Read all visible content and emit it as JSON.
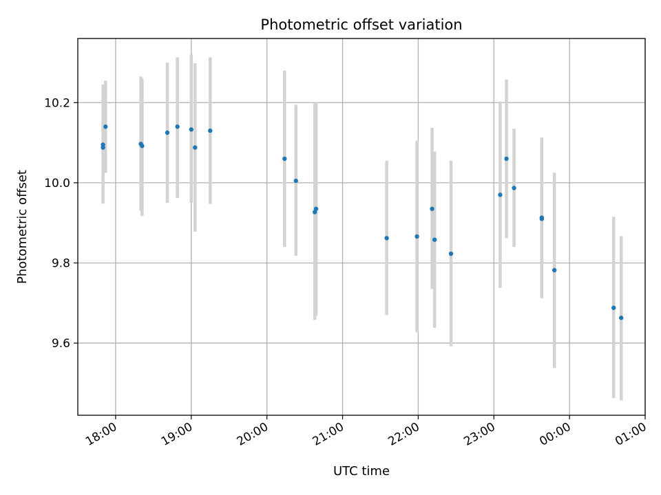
{
  "chart_data": {
    "type": "scatter",
    "title": "Photometric offset variation",
    "xlabel": "UTC time",
    "ylabel": "Photometric offset",
    "x_axis_type": "time",
    "xlim": [
      "17:30",
      "01:00"
    ],
    "ylim": [
      9.42,
      10.36
    ],
    "x_ticks": [
      "18:00",
      "19:00",
      "20:00",
      "21:00",
      "22:00",
      "23:00",
      "00:00",
      "01:00"
    ],
    "y_ticks": [
      9.6,
      9.8,
      10.0,
      10.2
    ],
    "grid": true,
    "legend": "none",
    "colors": {
      "points": "#1f77b4",
      "errorbars": "#d3d3d3",
      "grid": "#b0b0b0"
    },
    "series": [
      {
        "points": [
          {
            "x": "17:50",
            "y": 10.095,
            "ylow": 9.948,
            "yhigh": 10.245
          },
          {
            "x": "17:50",
            "y": 10.088,
            "ylow": 9.948,
            "yhigh": 10.23
          },
          {
            "x": "17:52",
            "y": 10.14,
            "ylow": 10.025,
            "yhigh": 10.255
          },
          {
            "x": "18:20",
            "y": 10.097,
            "ylow": 9.93,
            "yhigh": 10.265
          },
          {
            "x": "18:21",
            "y": 10.092,
            "ylow": 9.917,
            "yhigh": 10.26
          },
          {
            "x": "18:41",
            "y": 10.125,
            "ylow": 9.95,
            "yhigh": 10.3
          },
          {
            "x": "18:49",
            "y": 10.14,
            "ylow": 9.962,
            "yhigh": 10.313
          },
          {
            "x": "19:00",
            "y": 10.133,
            "ylow": 9.95,
            "yhigh": 10.32
          },
          {
            "x": "19:03",
            "y": 10.088,
            "ylow": 9.878,
            "yhigh": 10.298
          },
          {
            "x": "19:15",
            "y": 10.13,
            "ylow": 9.947,
            "yhigh": 10.313
          },
          {
            "x": "20:14",
            "y": 10.06,
            "ylow": 9.84,
            "yhigh": 10.28
          },
          {
            "x": "20:23",
            "y": 10.005,
            "ylow": 9.818,
            "yhigh": 10.195
          },
          {
            "x": "20:39",
            "y": 9.935,
            "ylow": 9.668,
            "yhigh": 10.2
          },
          {
            "x": "20:38",
            "y": 9.927,
            "ylow": 9.658,
            "yhigh": 10.198
          },
          {
            "x": "21:35",
            "y": 9.862,
            "ylow": 9.67,
            "yhigh": 10.055
          },
          {
            "x": "21:59",
            "y": 9.866,
            "ylow": 9.627,
            "yhigh": 10.105
          },
          {
            "x": "22:11",
            "y": 9.935,
            "ylow": 9.735,
            "yhigh": 10.137
          },
          {
            "x": "22:13",
            "y": 9.858,
            "ylow": 9.638,
            "yhigh": 10.078
          },
          {
            "x": "22:26",
            "y": 9.823,
            "ylow": 9.592,
            "yhigh": 10.055
          },
          {
            "x": "23:05",
            "y": 9.97,
            "ylow": 9.738,
            "yhigh": 10.203
          },
          {
            "x": "23:10",
            "y": 10.06,
            "ylow": 9.862,
            "yhigh": 10.258
          },
          {
            "x": "23:16",
            "y": 9.987,
            "ylow": 9.84,
            "yhigh": 10.135
          },
          {
            "x": "23:38",
            "y": 9.913,
            "ylow": 9.712,
            "yhigh": 10.113
          },
          {
            "x": "23:38",
            "y": 9.91,
            "ylow": 9.712,
            "yhigh": 10.11
          },
          {
            "x": "23:48",
            "y": 9.782,
            "ylow": 9.538,
            "yhigh": 10.025
          },
          {
            "x": "00:35",
            "y": 9.688,
            "ylow": 9.463,
            "yhigh": 9.915
          },
          {
            "x": "00:41",
            "y": 9.663,
            "ylow": 9.457,
            "yhigh": 9.867
          }
        ]
      }
    ]
  }
}
